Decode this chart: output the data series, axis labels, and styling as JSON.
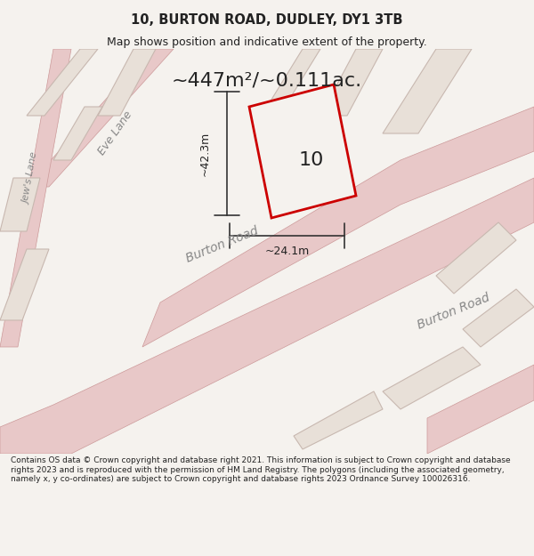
{
  "title_line1": "10, BURTON ROAD, DUDLEY, DY1 3TB",
  "title_line2": "Map shows position and indicative extent of the property.",
  "area_text": "~447m²/~0.111ac.",
  "property_number": "10",
  "dim1_label": "~42.3m",
  "dim2_label": "~24.1m",
  "road_labels": [
    "Eve Lane",
    "Jew's Lane",
    "Burton Road",
    "Burton Road"
  ],
  "footer_text": "Contains OS data © Crown copyright and database right 2021. This information is subject to Crown copyright and database rights 2023 and is reproduced with the permission of HM Land Registry. The polygons (including the associated geometry, namely x, y co-ordinates) are subject to Crown copyright and database rights 2023 Ordnance Survey 100026316.",
  "bg_color": "#f0ede8",
  "map_bg": "#f5f2ee",
  "plot_fill": "#f5f2ee",
  "road_color": "#e8c8c8",
  "plot_outline_color": "#cc0000",
  "building_fill": "#e8e8e8",
  "building_outline": "#cccccc",
  "dim_line_color": "#333333",
  "text_color": "#222222"
}
